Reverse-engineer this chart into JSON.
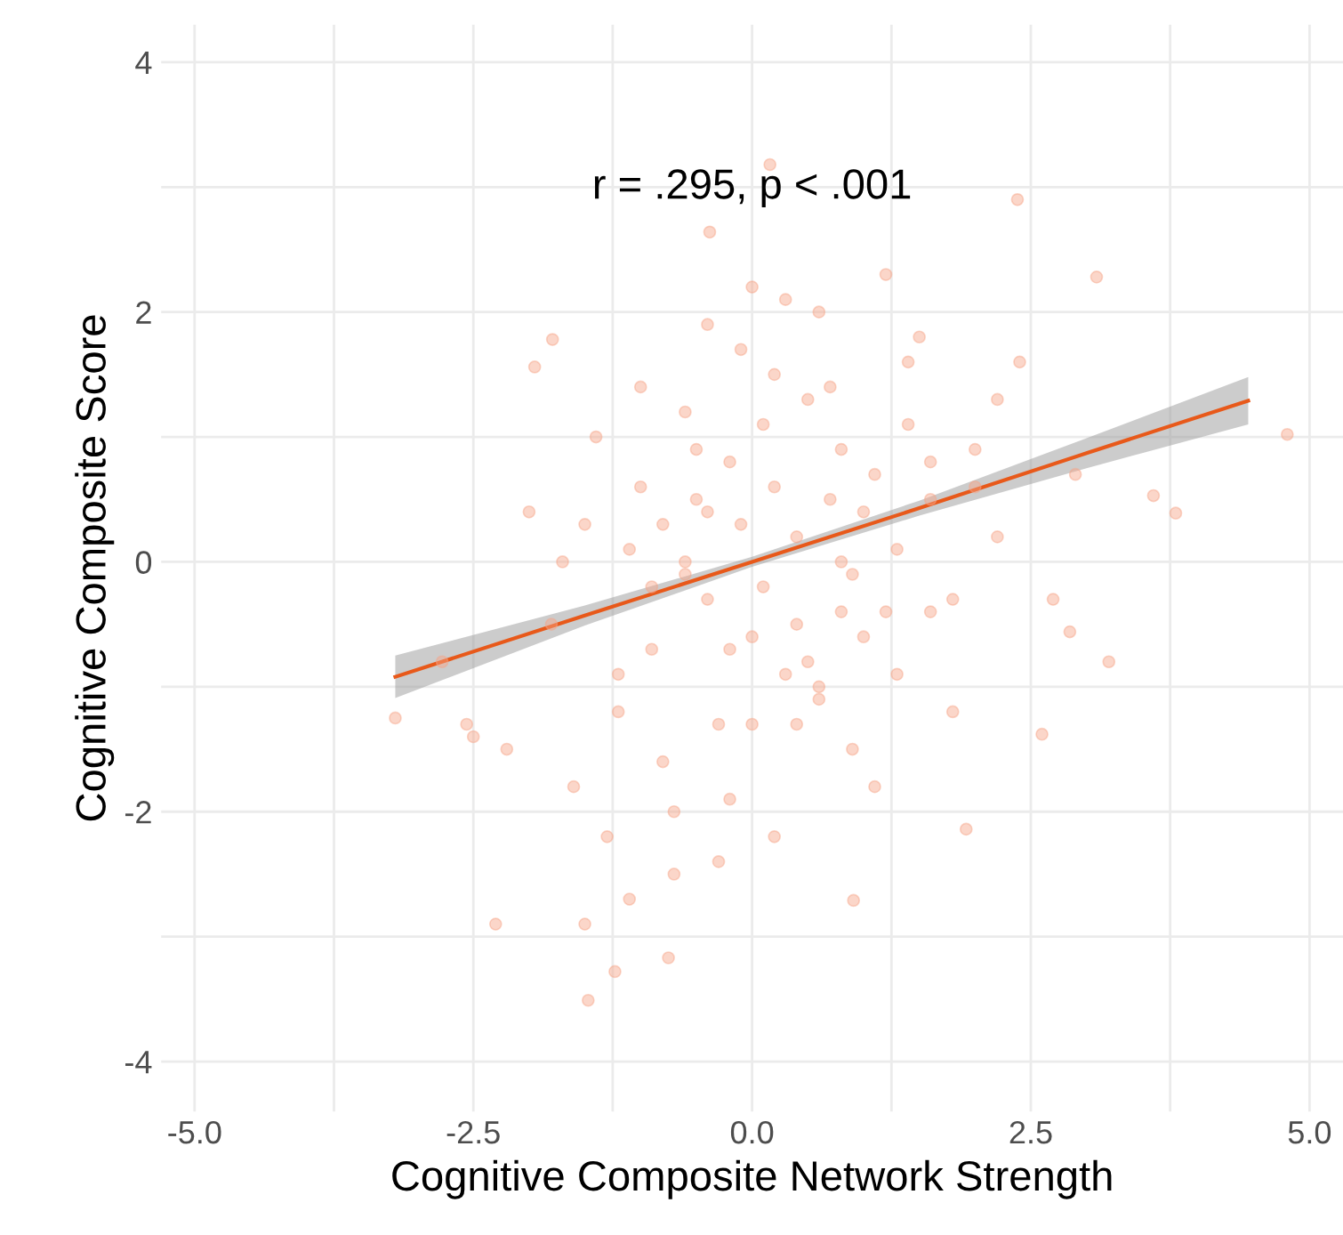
{
  "chart_data": {
    "type": "scatter",
    "xlabel": "Cognitive Composite Network Strength",
    "ylabel": "Cognitive Composite Score",
    "annotations": [
      "r = .295, p < .001"
    ],
    "xlim": [
      -5.3,
      5.3
    ],
    "ylim": [
      -4.4,
      4.3
    ],
    "xticks": [
      {
        "value": -5,
        "label": "-5.0"
      },
      {
        "value": -3.75,
        "label": null
      },
      {
        "value": -2.5,
        "label": "-2.5"
      },
      {
        "value": -1.25,
        "label": null
      },
      {
        "value": 0,
        "label": "0.0"
      },
      {
        "value": 1.25,
        "label": null
      },
      {
        "value": 2.5,
        "label": "2.5"
      },
      {
        "value": 3.75,
        "label": null
      },
      {
        "value": 5,
        "label": "5.0"
      }
    ],
    "yticks": [
      -4,
      {
        "value": -3,
        "label": null
      },
      -2,
      {
        "value": -1,
        "label": null
      },
      0,
      {
        "value": 1,
        "label": null
      },
      2,
      {
        "value": 3,
        "label": null
      },
      4
    ],
    "grid": true,
    "series": [
      {
        "marker": "circle",
        "color": "#f7a487",
        "x": [
          -3.2,
          -2.5,
          -2.3,
          -1.47,
          -1.23,
          -0.75,
          0.16,
          -0.38,
          2.38,
          3.09,
          4.8,
          3.2,
          1.92,
          0.91,
          -2.56,
          -2.78,
          -1.95,
          -1.79,
          2.85,
          2.9,
          3.8,
          3.6,
          2.6,
          -1.8,
          -1.5,
          -1.2,
          -1.0,
          -0.8,
          -0.6,
          -0.4,
          -0.2,
          0.0,
          0.2,
          0.4,
          0.6,
          0.8,
          1.0,
          1.2,
          1.4,
          1.6,
          -1.6,
          -1.3,
          -1.1,
          -0.9,
          -0.7,
          -0.5,
          -0.3,
          -0.1,
          0.1,
          0.3,
          0.5,
          0.7,
          0.9,
          1.1,
          1.3,
          1.5,
          1.8,
          2.0,
          2.2,
          -1.4,
          -1.0,
          -0.6,
          -0.2,
          0.2,
          0.6,
          1.0,
          1.4,
          1.8,
          2.2,
          -1.7,
          -1.2,
          -0.8,
          -0.4,
          0.0,
          0.4,
          0.8,
          1.2,
          1.6,
          2.0,
          -0.9,
          -0.5,
          -0.1,
          0.3,
          0.7,
          1.1,
          -0.7,
          -0.3,
          0.1,
          0.5,
          0.9,
          -1.1,
          -0.6,
          0.0,
          0.6,
          1.3,
          -0.4,
          0.2,
          0.8,
          -2.2,
          -2.0,
          2.4,
          2.7,
          -0.2,
          0.4,
          1.6,
          -1.5
        ],
        "values": [
          -1.25,
          -1.4,
          -2.9,
          -3.51,
          -3.28,
          -3.17,
          3.18,
          2.64,
          2.9,
          2.28,
          1.02,
          -0.8,
          -2.14,
          -2.71,
          -1.3,
          -0.8,
          1.56,
          1.78,
          -0.56,
          0.7,
          0.39,
          0.53,
          -1.38,
          -0.5,
          0.3,
          -0.9,
          0.6,
          -1.6,
          1.2,
          -0.3,
          0.8,
          -0.6,
          1.5,
          0.2,
          -1.1,
          0.9,
          0.4,
          -0.4,
          1.1,
          0.5,
          -1.8,
          -2.2,
          0.1,
          -0.7,
          -2.5,
          0.5,
          -1.3,
          1.7,
          -0.2,
          2.1,
          -0.8,
          1.4,
          -1.5,
          0.7,
          -0.9,
          1.8,
          -0.3,
          0.9,
          1.3,
          1.0,
          1.4,
          -0.1,
          -1.9,
          0.6,
          2.0,
          -0.6,
          1.6,
          -1.2,
          0.2,
          0.0,
          -1.2,
          0.3,
          0.4,
          -1.3,
          -0.5,
          0.0,
          2.3,
          -0.4,
          0.6,
          -0.2,
          0.9,
          0.3,
          -0.9,
          0.5,
          -1.8,
          -2.0,
          -2.4,
          1.1,
          1.3,
          -0.1,
          -2.7,
          0.0,
          2.2,
          -1.0,
          0.1,
          1.9,
          -2.2,
          -0.4,
          -1.5,
          0.4,
          1.6,
          -0.3,
          -0.7,
          -1.3,
          0.8,
          -2.9
        ]
      },
      {
        "type": "line",
        "marker": "none",
        "color": "#e8591a",
        "x": [
          -3.2,
          -1.5,
          0,
          1.5,
          3,
          4.45
        ],
        "values": [
          -0.92,
          -0.43,
          0.0,
          0.43,
          0.87,
          1.29
        ],
        "lower": [
          -1.09,
          -0.51,
          -0.04,
          0.37,
          0.75,
          1.1
        ],
        "upper": [
          -0.75,
          -0.35,
          0.04,
          0.49,
          0.99,
          1.48
        ]
      }
    ]
  }
}
